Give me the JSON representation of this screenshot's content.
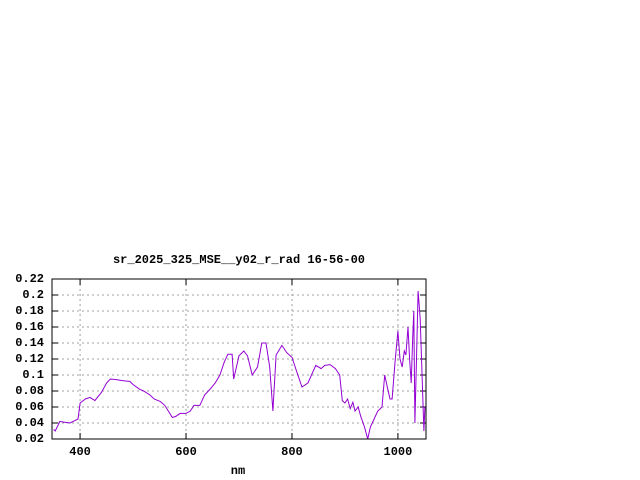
{
  "chart_data": {
    "type": "line",
    "title": "sr_2025_325_MSE__y02_r_rad 16-56-00",
    "xlabel": "nm",
    "series": [
      {
        "color": "#9400d3",
        "x": [
          350,
          353,
          362,
          371,
          381,
          390,
          396,
          400,
          410,
          419,
          428,
          440,
          450,
          457,
          470,
          480,
          494,
          500,
          513,
          520,
          532,
          540,
          551,
          560,
          574,
          580,
          589,
          600,
          608,
          615,
          626,
          635,
          645,
          655,
          664,
          672,
          679,
          687,
          690,
          700,
          709,
          716,
          725,
          735,
          743,
          751,
          758,
          764,
          770,
          781,
          790,
          800,
          810,
          819,
          830,
          845,
          855,
          862,
          872,
          882,
          890,
          895,
          900,
          905,
          910,
          915,
          919,
          925,
          930,
          937,
          943,
          948,
          955,
          962,
          970,
          975,
          980,
          985,
          989,
          995,
          1000,
          1004,
          1008,
          1012,
          1015,
          1019,
          1022,
          1025,
          1028,
          1030,
          1032,
          1035,
          1038,
          1042,
          1045,
          1049,
          1051
        ],
        "y": [
          0.032,
          0.03,
          0.042,
          0.041,
          0.04,
          0.043,
          0.045,
          0.065,
          0.07,
          0.072,
          0.068,
          0.078,
          0.09,
          0.095,
          0.094,
          0.093,
          0.092,
          0.088,
          0.082,
          0.08,
          0.075,
          0.07,
          0.067,
          0.062,
          0.047,
          0.048,
          0.052,
          0.052,
          0.055,
          0.062,
          0.062,
          0.075,
          0.082,
          0.09,
          0.1,
          0.116,
          0.126,
          0.126,
          0.095,
          0.124,
          0.13,
          0.124,
          0.1,
          0.11,
          0.14,
          0.14,
          0.11,
          0.055,
          0.125,
          0.137,
          0.128,
          0.122,
          0.102,
          0.085,
          0.09,
          0.112,
          0.108,
          0.112,
          0.113,
          0.108,
          0.1,
          0.068,
          0.065,
          0.07,
          0.058,
          0.066,
          0.055,
          0.06,
          0.048,
          0.035,
          0.02,
          0.035,
          0.045,
          0.055,
          0.06,
          0.1,
          0.085,
          0.07,
          0.07,
          0.12,
          0.155,
          0.12,
          0.11,
          0.13,
          0.125,
          0.16,
          0.12,
          0.09,
          0.15,
          0.18,
          0.04,
          0.12,
          0.205,
          0.17,
          0.11,
          0.03,
          0.06
        ]
      }
    ],
    "xlim": [
      347,
      1053
    ],
    "ylim": [
      0.02,
      0.22
    ],
    "xticks": [
      400,
      600,
      800,
      1000
    ],
    "yticks": [
      0.02,
      0.04,
      0.06,
      0.08,
      0.1,
      0.12,
      0.14,
      0.16,
      0.18,
      0.2,
      0.22
    ],
    "grid": true
  }
}
